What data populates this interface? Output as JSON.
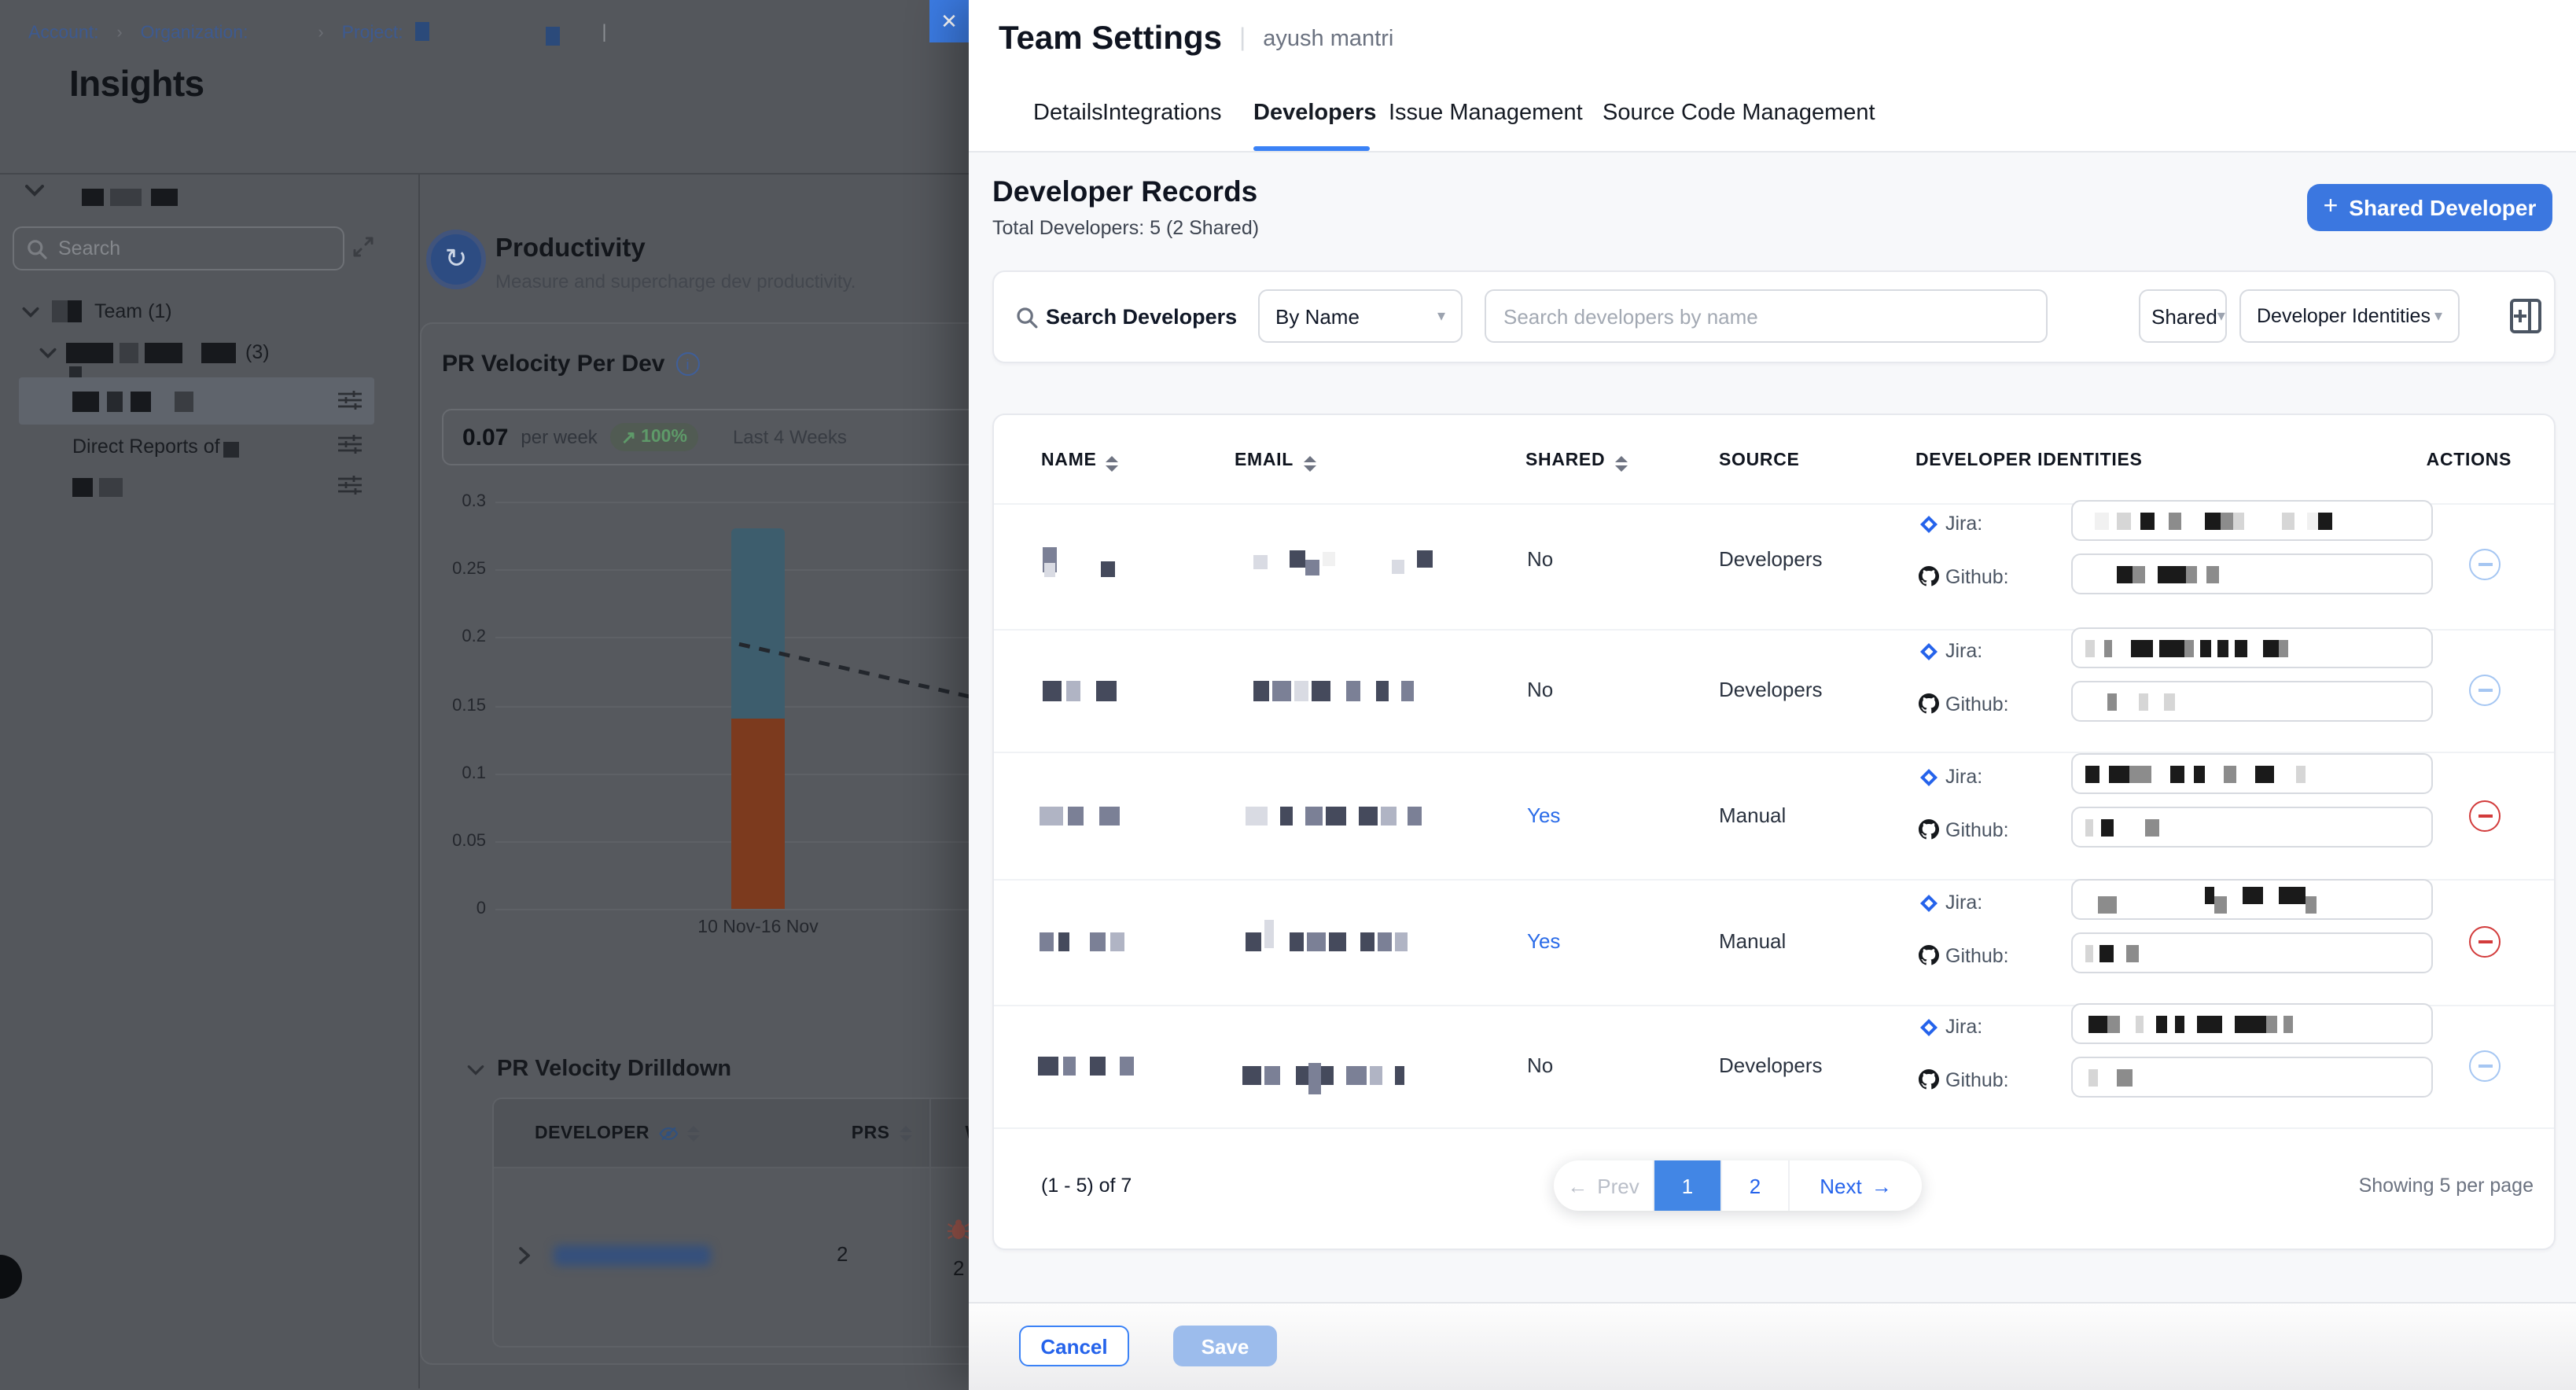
{
  "page": {
    "breadcrumb": {
      "account": "Account:",
      "organization": "Organization:",
      "project": "Project:"
    },
    "title": "Insights"
  },
  "sidebar": {
    "search_placeholder": "Search",
    "team_label": "Team (1)",
    "group_count": "(3)",
    "direct_reports_label": "Direct Reports of"
  },
  "productivity": {
    "title": "Productivity",
    "subtitle": "Measure and supercharge dev productivity.",
    "chart_title": "PR Velocity Per Dev",
    "stat_value": "0.07",
    "stat_unit": "per week",
    "stat_change": "100%",
    "stat_period": "Last 4 Weeks"
  },
  "chart_data": {
    "type": "bar",
    "stacked": true,
    "title": "PR Velocity Per Dev",
    "categories": [
      "10 Nov-16 Nov"
    ],
    "series": [
      {
        "name": "lower-segment",
        "color": "#7c3a1e",
        "values": [
          0.14
        ]
      },
      {
        "name": "upper-segment",
        "color": "#3d5d6d",
        "values": [
          0.14
        ]
      }
    ],
    "bar_total": 0.28,
    "trend_line": {
      "style": "dashed",
      "start_value": 0.195,
      "end_value": 0.152
    },
    "ylim": [
      0,
      0.3
    ],
    "yticks": [
      0,
      0.05,
      0.1,
      0.15,
      0.2,
      0.25,
      0.3
    ],
    "grid": true,
    "legend": false
  },
  "drilldown": {
    "title": "PR Velocity Drilldown",
    "columns": {
      "developer": "DEVELOPER",
      "prs": "PRS",
      "wo": "WO"
    },
    "row": {
      "prs": "2",
      "wo_badge_count": "2"
    }
  },
  "modal": {
    "title": "Team Settings",
    "owner": "ayush mantri",
    "close_glyph": "✕",
    "tabs": [
      "Details",
      "Integrations",
      "Developers",
      "Issue Management",
      "Source Code Management"
    ],
    "active_tab": "Developers",
    "section_title": "Developer Records",
    "total_label": "Total Developers: 5 (2 Shared)",
    "add_button_plus": "+",
    "add_button": "Shared Developer"
  },
  "search": {
    "label": "Search Developers",
    "by_selector": "By Name",
    "input_placeholder": "Search developers by name",
    "shared_filter": "Shared",
    "identities_filter": "Developer Identities"
  },
  "table": {
    "headers": {
      "name": "NAME",
      "email": "EMAIL",
      "shared": "SHARED",
      "source": "SOURCE",
      "identities": "DEVELOPER IDENTITIES",
      "actions": "ACTIONS"
    },
    "jira_label": "Jira:",
    "github_label": "Github:",
    "rows": [
      {
        "shared": "No",
        "source": "Developers"
      },
      {
        "shared": "No",
        "source": "Developers"
      },
      {
        "shared": "Yes",
        "source": "Manual"
      },
      {
        "shared": "Yes",
        "source": "Manual"
      },
      {
        "shared": "No",
        "source": "Developers"
      }
    ]
  },
  "pagination": {
    "range": "(1 - 5) of 7",
    "prev": "Prev",
    "pages": [
      "1",
      "2"
    ],
    "active_page": "1",
    "next": "Next",
    "per_page": "Showing 5 per page"
  },
  "footer": {
    "cancel": "Cancel",
    "save": "Save"
  },
  "colors": {
    "accent_blue": "#3b77e0",
    "link_blue": "#2563eb",
    "active_page_bg": "#4286e5",
    "danger_red": "#d23b3b",
    "disabled_minus_blue": "#a5c6f2",
    "disabled_save": "#9cbcec",
    "bar_top": "#3d5d6d",
    "bar_bottom": "#7c3a1e"
  }
}
